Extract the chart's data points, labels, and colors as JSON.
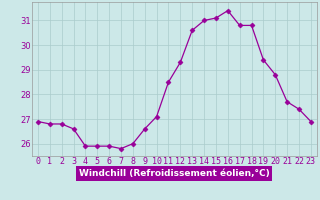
{
  "hours": [
    0,
    1,
    2,
    3,
    4,
    5,
    6,
    7,
    8,
    9,
    10,
    11,
    12,
    13,
    14,
    15,
    16,
    17,
    18,
    19,
    20,
    21,
    22,
    23
  ],
  "values": [
    26.9,
    26.8,
    26.8,
    26.6,
    25.9,
    25.9,
    25.9,
    25.8,
    26.0,
    26.6,
    27.1,
    28.5,
    29.3,
    30.6,
    31.0,
    31.1,
    31.4,
    30.8,
    30.8,
    29.4,
    28.8,
    27.7,
    27.4,
    26.9
  ],
  "line_color": "#990099",
  "marker": "D",
  "marker_size": 2.5,
  "bg_color": "#cce8e8",
  "plot_bg_color": "#cce8e8",
  "grid_color": "#aacccc",
  "xlabel": "Windchill (Refroidissement éolien,°C)",
  "xlabel_color": "#ffffff",
  "xlabel_bg": "#990099",
  "tick_color": "#990099",
  "ylim_min": 25.5,
  "ylim_max": 31.75,
  "yticks": [
    26,
    27,
    28,
    29,
    30,
    31
  ],
  "spine_color": "#999999",
  "tick_fontsize": 6,
  "xlabel_fontsize": 6.5
}
